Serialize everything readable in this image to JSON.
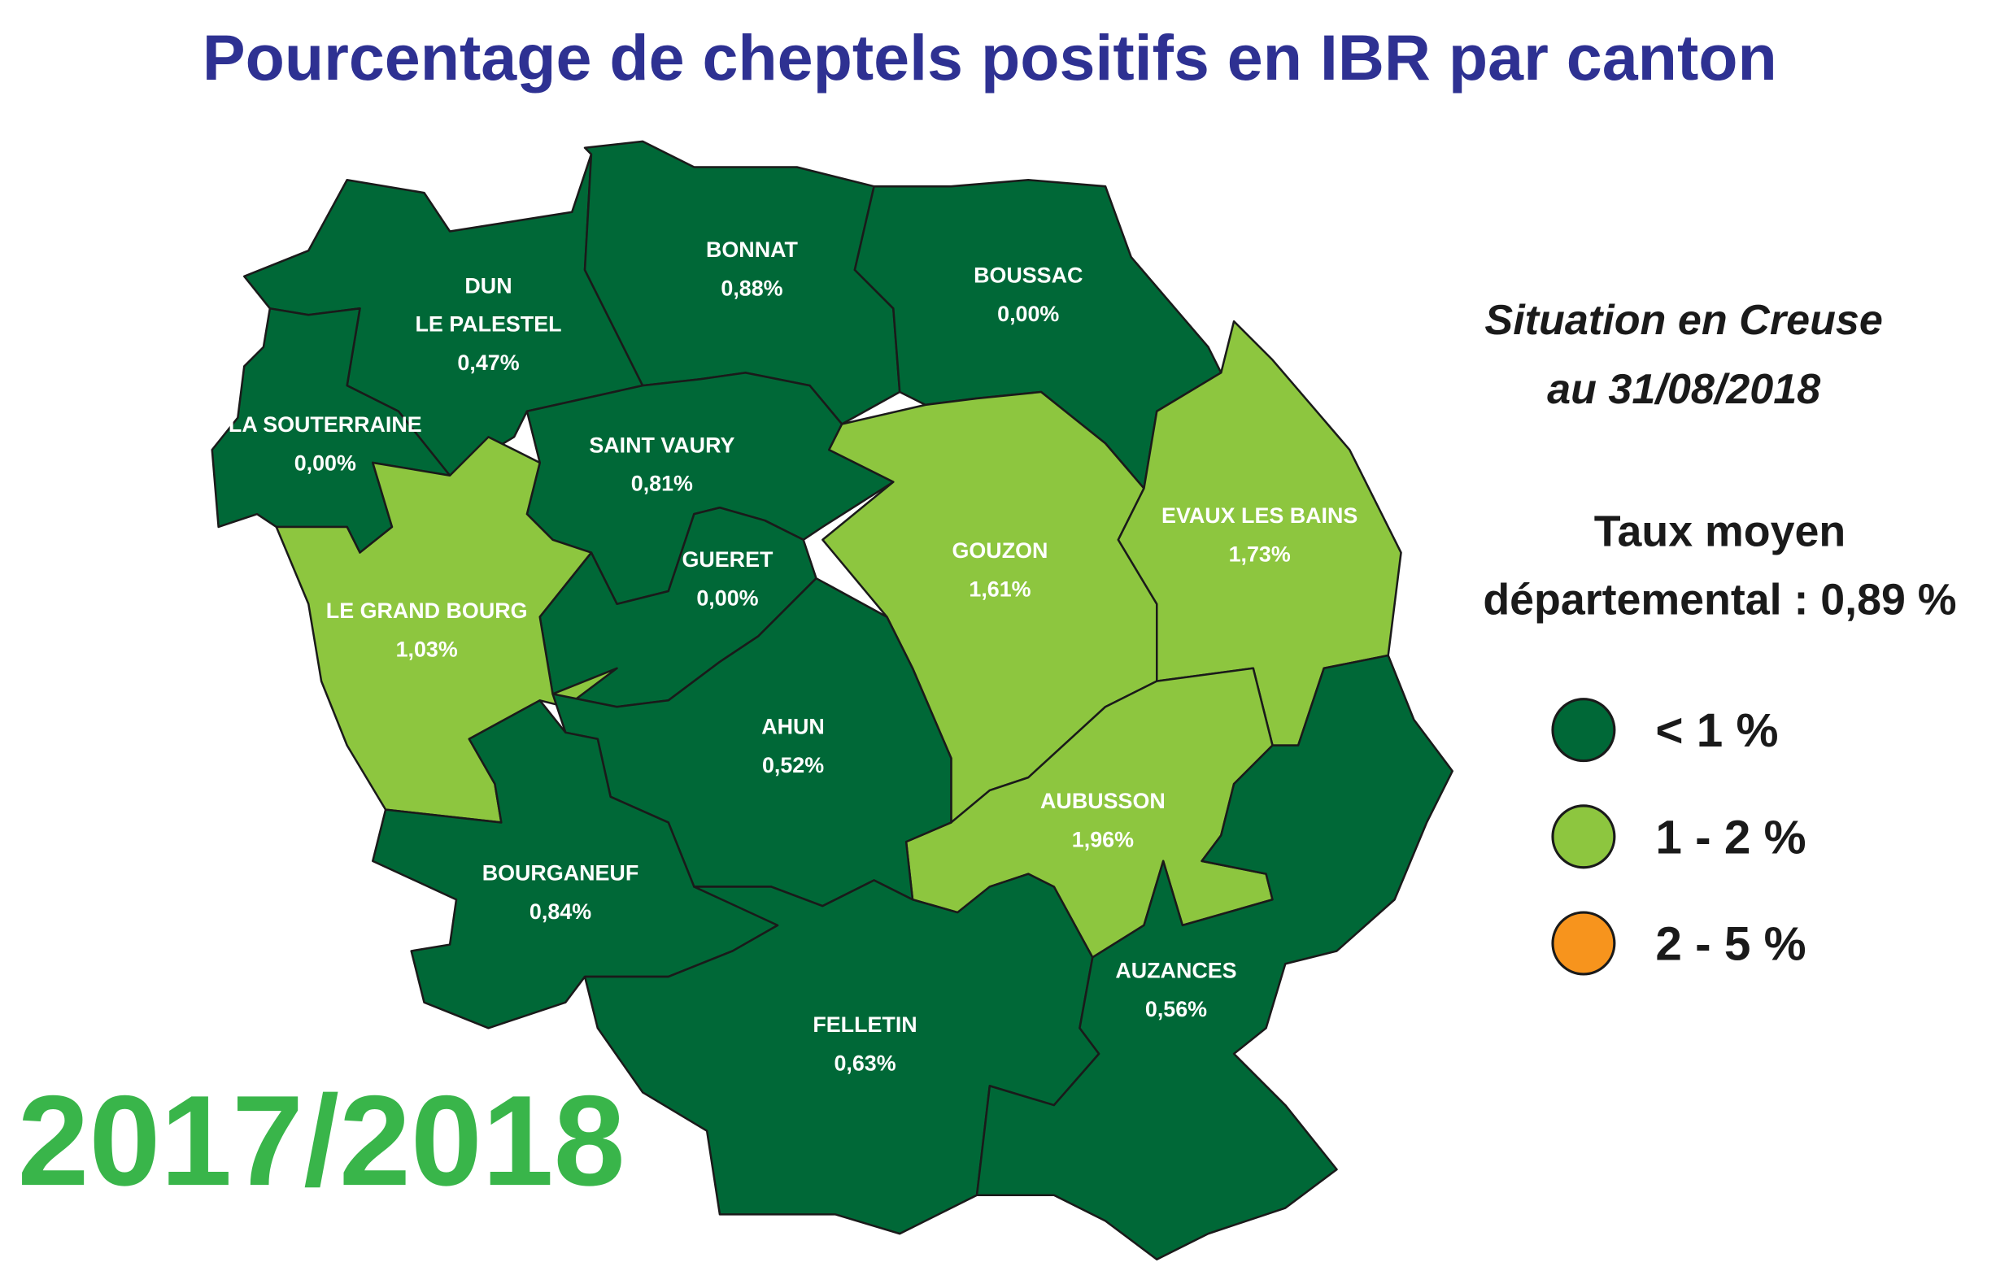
{
  "title": "Pourcentage de cheptels positifs en IBR par canton",
  "situation": [
    "Situation en Creuse",
    "au 31/08/2018"
  ],
  "average": [
    "Taux moyen",
    "départemental : 0,89 %"
  ],
  "legend": [
    {
      "label": "< 1 %",
      "color": "#006837"
    },
    {
      "label": "1 - 2 %",
      "color": "#8dc63f"
    },
    {
      "label": "2 - 5 %",
      "color": "#f7941d"
    }
  ],
  "year": "2017/2018",
  "cantons": [
    {
      "name": [
        "DUN",
        "LE PALESTEL"
      ],
      "value": "0,47%",
      "color": "#006837"
    },
    {
      "name": [
        "LA SOUTERRAINE"
      ],
      "value": "0,00%",
      "color": "#006837"
    },
    {
      "name": [
        "BONNAT"
      ],
      "value": "0,88%",
      "color": "#006837"
    },
    {
      "name": [
        "BOUSSAC"
      ],
      "value": "0,00%",
      "color": "#006837"
    },
    {
      "name": [
        "SAINT VAURY"
      ],
      "value": "0,81%",
      "color": "#006837"
    },
    {
      "name": [
        "GUERET"
      ],
      "value": "0,00%",
      "color": "#006837"
    },
    {
      "name": [
        "LE GRAND BOURG"
      ],
      "value": "1,03%",
      "color": "#8dc63f"
    },
    {
      "name": [
        "GOUZON"
      ],
      "value": "1,61%",
      "color": "#8dc63f"
    },
    {
      "name": [
        "EVAUX LES BAINS"
      ],
      "value": "1,73%",
      "color": "#8dc63f"
    },
    {
      "name": [
        "AUBUSSON"
      ],
      "value": "1,96%",
      "color": "#8dc63f"
    },
    {
      "name": [
        "AHUN"
      ],
      "value": "0,52%",
      "color": "#006837"
    },
    {
      "name": [
        "BOURGANEUF"
      ],
      "value": "0,84%",
      "color": "#006837"
    },
    {
      "name": [
        "FELLETIN"
      ],
      "value": "0,63%",
      "color": "#006837"
    },
    {
      "name": [
        "AUZANCES"
      ],
      "value": "0,56%",
      "color": "#006837"
    }
  ]
}
